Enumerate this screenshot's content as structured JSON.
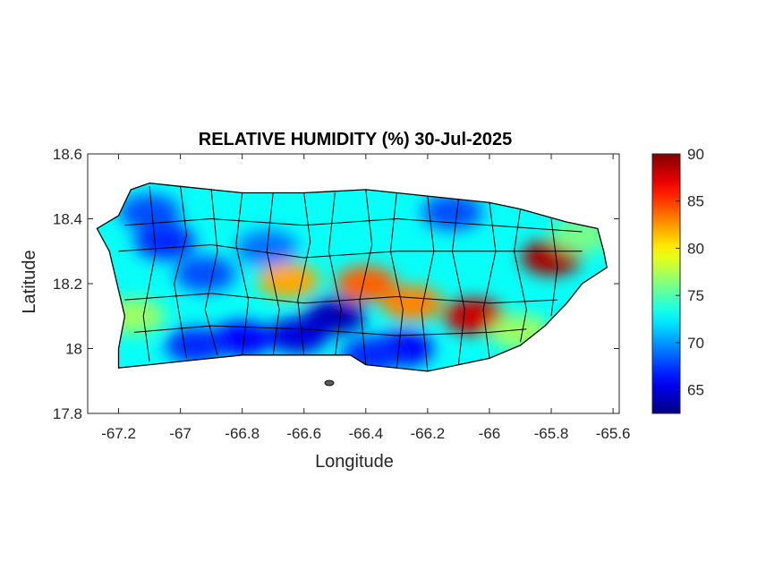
{
  "title": "RELATIVE HUMIDITY (%) 30-Jul-2025",
  "x_axis": {
    "label": "Longitude",
    "range": [
      -67.3,
      -65.58
    ],
    "ticks": [
      -67.2,
      -67,
      -66.8,
      -66.6,
      -66.4,
      -66.2,
      -66,
      -65.8,
      -65.6
    ],
    "tick_labels": [
      "-67.2",
      "-67",
      "-66.8",
      "-66.6",
      "-66.4",
      "-66.2",
      "-66",
      "-65.8",
      "-65.6"
    ]
  },
  "y_axis": {
    "label": "Latitude",
    "range": [
      17.8,
      18.6
    ],
    "ticks": [
      17.8,
      18,
      18.2,
      18.4,
      18.6
    ],
    "tick_labels": [
      "17.8",
      "18",
      "18.2",
      "18.4",
      "18.6"
    ]
  },
  "colorbar": {
    "colormap": "jet",
    "range": [
      62.5,
      90
    ],
    "ticks": [
      65,
      70,
      75,
      80,
      85,
      90
    ],
    "tick_labels": [
      "65",
      "70",
      "75",
      "80",
      "85",
      "90"
    ]
  },
  "map": {
    "type": "heatmap",
    "region_outline": [
      [
        -67.27,
        18.37
      ],
      [
        -67.2,
        18.41
      ],
      [
        -67.16,
        18.49
      ],
      [
        -67.1,
        18.51
      ],
      [
        -67.0,
        18.5
      ],
      [
        -66.9,
        18.49
      ],
      [
        -66.8,
        18.48
      ],
      [
        -66.6,
        18.48
      ],
      [
        -66.4,
        18.49
      ],
      [
        -66.2,
        18.47
      ],
      [
        -66.0,
        18.45
      ],
      [
        -65.9,
        18.43
      ],
      [
        -65.75,
        18.39
      ],
      [
        -65.65,
        18.37
      ],
      [
        -65.63,
        18.3
      ],
      [
        -65.62,
        18.25
      ],
      [
        -65.7,
        18.2
      ],
      [
        -65.75,
        18.14
      ],
      [
        -65.82,
        18.07
      ],
      [
        -65.9,
        18.01
      ],
      [
        -66.0,
        17.97
      ],
      [
        -66.2,
        17.93
      ],
      [
        -66.4,
        17.95
      ],
      [
        -66.45,
        17.98
      ],
      [
        -66.6,
        17.98
      ],
      [
        -66.8,
        17.98
      ],
      [
        -67.0,
        17.96
      ],
      [
        -67.1,
        17.95
      ],
      [
        -67.2,
        17.94
      ],
      [
        -67.2,
        18.0
      ],
      [
        -67.18,
        18.1
      ],
      [
        -67.2,
        18.18
      ],
      [
        -67.23,
        18.3
      ],
      [
        -67.27,
        18.37
      ]
    ],
    "humidity_centers": [
      {
        "lon": -65.8,
        "lat": 18.28,
        "rh": 89
      },
      {
        "lon": -66.05,
        "lat": 18.1,
        "rh": 88
      },
      {
        "lon": -66.4,
        "lat": 18.2,
        "rh": 84
      },
      {
        "lon": -66.65,
        "lat": 18.21,
        "rh": 82
      },
      {
        "lon": -66.25,
        "lat": 18.14,
        "rh": 83
      },
      {
        "lon": -66.5,
        "lat": 18.1,
        "rh": 64
      },
      {
        "lon": -66.62,
        "lat": 18.04,
        "rh": 65
      },
      {
        "lon": -66.8,
        "lat": 18.03,
        "rh": 66
      },
      {
        "lon": -66.95,
        "lat": 18.01,
        "rh": 67
      },
      {
        "lon": -66.28,
        "lat": 18.0,
        "rh": 66
      },
      {
        "lon": -66.38,
        "lat": 17.98,
        "rh": 67
      },
      {
        "lon": -67.05,
        "lat": 18.33,
        "rh": 67
      },
      {
        "lon": -67.1,
        "lat": 18.42,
        "rh": 68
      },
      {
        "lon": -66.92,
        "lat": 18.23,
        "rh": 68
      },
      {
        "lon": -66.12,
        "lat": 18.42,
        "rh": 68
      },
      {
        "lon": -66.72,
        "lat": 18.31,
        "rh": 69
      },
      {
        "lon": -67.15,
        "lat": 18.1,
        "rh": 77
      },
      {
        "lon": -65.9,
        "lat": 18.05,
        "rh": 77
      },
      {
        "lon": -65.7,
        "lat": 18.35,
        "rh": 76
      }
    ],
    "background_rh": 73
  }
}
